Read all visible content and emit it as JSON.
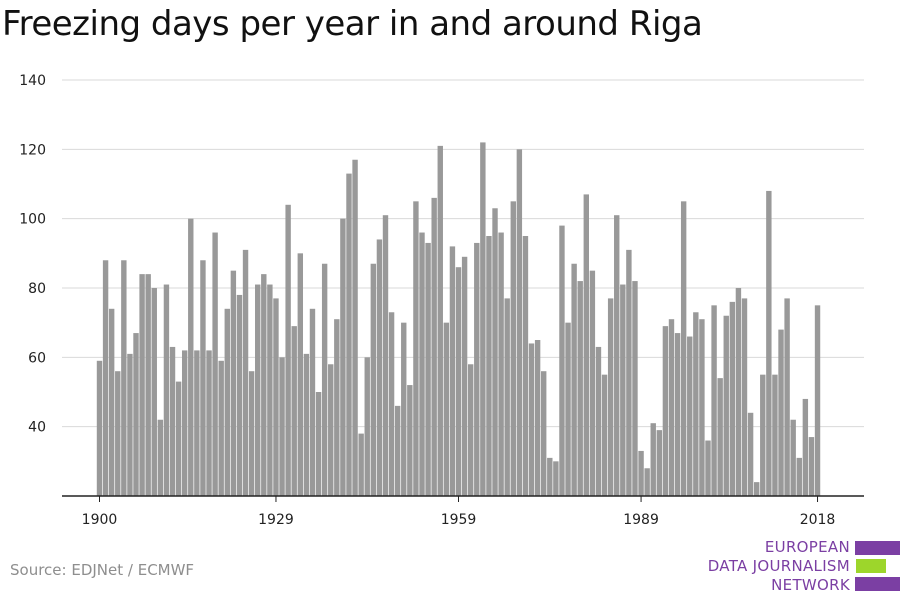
{
  "title": "Freezing days per year in and around Riga",
  "source": "Source: EDJNet / ECMWF",
  "logo": {
    "line1": "EUROPEAN",
    "line2": "DATA JOURNALISM",
    "line3": "NETWORK",
    "colors": {
      "purple": "#7b3fa3",
      "green": "#9dd62b"
    }
  },
  "colors": {
    "bar": "#999999",
    "grid": "#d9d9d9",
    "axis": "#222222"
  },
  "chart_data": {
    "type": "bar",
    "title": "Freezing days per year in and around Riga",
    "ylim": [
      20,
      140
    ],
    "yticks": [
      40,
      60,
      80,
      100,
      120,
      140
    ],
    "xticks": [
      "1900",
      "1929",
      "1959",
      "1989",
      "2018"
    ],
    "grid": true,
    "x": [
      1900,
      1901,
      1902,
      1903,
      1904,
      1905,
      1906,
      1907,
      1908,
      1909,
      1910,
      1911,
      1912,
      1913,
      1914,
      1915,
      1916,
      1917,
      1918,
      1919,
      1920,
      1921,
      1922,
      1923,
      1924,
      1925,
      1926,
      1927,
      1928,
      1929,
      1930,
      1931,
      1932,
      1933,
      1934,
      1935,
      1936,
      1937,
      1938,
      1939,
      1940,
      1941,
      1942,
      1943,
      1944,
      1945,
      1946,
      1947,
      1948,
      1949,
      1950,
      1951,
      1952,
      1953,
      1954,
      1955,
      1956,
      1957,
      1958,
      1959,
      1960,
      1961,
      1962,
      1963,
      1964,
      1965,
      1966,
      1967,
      1968,
      1969,
      1970,
      1971,
      1972,
      1973,
      1974,
      1975,
      1976,
      1977,
      1978,
      1979,
      1980,
      1981,
      1982,
      1983,
      1984,
      1985,
      1986,
      1987,
      1988,
      1989,
      1990,
      1991,
      1992,
      1993,
      1994,
      1995,
      1996,
      1997,
      1998,
      1999,
      2000,
      2001,
      2002,
      2003,
      2004,
      2005,
      2006,
      2007,
      2008,
      2009,
      2010,
      2011,
      2012,
      2013,
      2014,
      2015,
      2016,
      2017,
      2018
    ],
    "values": [
      59,
      88,
      74,
      56,
      88,
      61,
      67,
      84,
      84,
      80,
      42,
      81,
      63,
      53,
      62,
      100,
      62,
      88,
      62,
      96,
      59,
      74,
      85,
      78,
      91,
      56,
      81,
      84,
      81,
      77,
      60,
      104,
      69,
      90,
      61,
      74,
      50,
      87,
      58,
      71,
      100,
      113,
      117,
      38,
      60,
      87,
      94,
      101,
      73,
      46,
      70,
      52,
      105,
      96,
      93,
      106,
      121,
      70,
      92,
      86,
      89,
      58,
      93,
      122,
      95,
      103,
      96,
      77,
      105,
      120,
      95,
      64,
      65,
      56,
      31,
      30,
      98,
      70,
      87,
      82,
      107,
      85,
      63,
      55,
      77,
      101,
      81,
      91,
      82,
      33,
      28,
      41,
      39,
      69,
      71,
      67,
      105,
      66,
      73,
      71,
      36,
      75,
      54,
      72,
      76,
      80,
      77,
      44,
      24,
      55,
      108,
      55,
      68,
      77,
      42,
      31,
      48,
      37,
      75
    ]
  }
}
